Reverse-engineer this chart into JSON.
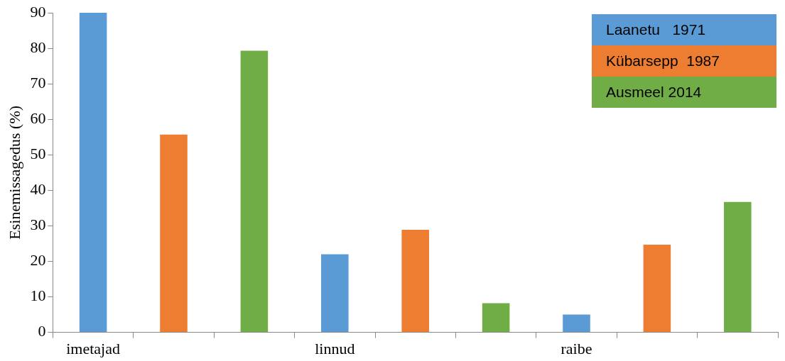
{
  "chart_data": {
    "type": "bar",
    "ylabel": "Esinemissagedus (%)",
    "categories": [
      "imetajad",
      null,
      null,
      "linnud",
      null,
      null,
      "raibe",
      null,
      null
    ],
    "series": [
      {
        "name": "Laanetu   1971",
        "color": "#5b9bd5",
        "values": [
          90,
          null,
          null,
          22,
          null,
          null,
          5,
          null,
          null
        ]
      },
      {
        "name": "Kübarsepp  1987",
        "color": "#ed7d31",
        "values": [
          null,
          55.7,
          null,
          null,
          28.9,
          null,
          null,
          24.7,
          null
        ]
      },
      {
        "name": "Ausmeel 2014",
        "color": "#70ad47",
        "values": [
          null,
          null,
          79.3,
          null,
          null,
          8.2,
          null,
          null,
          36.7
        ]
      }
    ],
    "ylim": [
      0,
      90
    ],
    "yticks": [
      0,
      10,
      20,
      30,
      40,
      50,
      60,
      70,
      80,
      90
    ],
    "grid": false,
    "legend": "top right"
  }
}
